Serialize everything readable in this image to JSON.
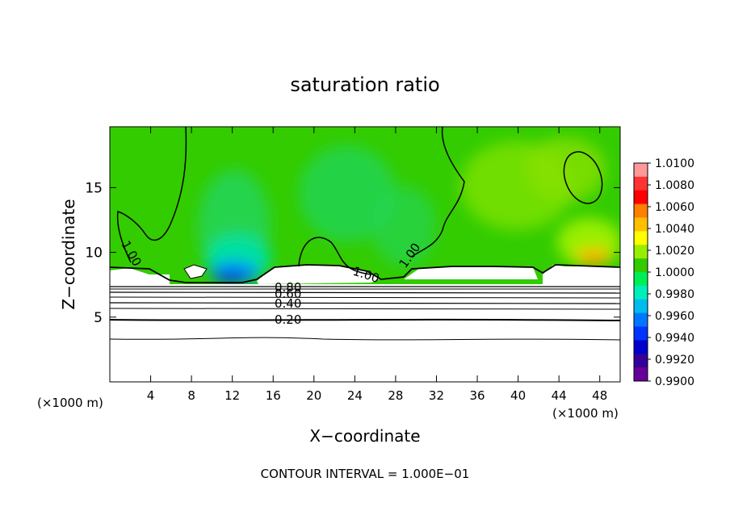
{
  "chart_data": {
    "type": "heatmap",
    "title": "saturation ratio",
    "xlabel": "X−coordinate",
    "ylabel": "Z−coordinate",
    "x_unit_left": "(×1000 m)",
    "x_unit_right": "(×1000 m)",
    "xlim": [
      0,
      50
    ],
    "ylim": [
      0,
      19.7
    ],
    "x_ticks": [
      4,
      8,
      12,
      16,
      20,
      24,
      28,
      32,
      36,
      40,
      44,
      48
    ],
    "y_ticks": [
      5,
      10,
      15
    ],
    "footer": "CONTOUR INTERVAL = 1.000E−01",
    "colorbar": {
      "min": 0.99,
      "max": 1.01,
      "labels": [
        "1.0100",
        "1.0080",
        "1.0060",
        "1.0040",
        "1.0020",
        "1.0000",
        "0.9980",
        "0.9960",
        "0.9940",
        "0.9920",
        "0.9900"
      ],
      "colors": [
        "#ff9999",
        "#ff3333",
        "#ff0000",
        "#ff7f00",
        "#ffbf00",
        "#ffff00",
        "#99ee00",
        "#33cc00",
        "#00ee55",
        "#00eebb",
        "#00bbee",
        "#0077ff",
        "#0033ff",
        "#0000cc",
        "#330099",
        "#660099"
      ]
    },
    "contour_labels": [
      {
        "text": "1.00",
        "x": 1.8,
        "y": 10.4
      },
      {
        "text": "1.00",
        "x": 25.2,
        "y": 8.5
      },
      {
        "text": "1.00",
        "x": 29.8,
        "y": 9.4
      },
      {
        "text": "0.80",
        "x": 17.5,
        "y": 7.6
      },
      {
        "text": "0.60",
        "x": 17.5,
        "y": 6.9
      },
      {
        "text": "0.40",
        "x": 17.5,
        "y": 6.1
      },
      {
        "text": "0.20",
        "x": 17.5,
        "y": 4.9
      }
    ],
    "subsaturated_levels": [
      0.2,
      0.4,
      0.6,
      0.8,
      1.0
    ],
    "cloud_top_z": 8.0,
    "field_notes": "Above cloud-top the saturation ratio is close to 1.0000 (green); minima near 0.9930 around x=11-13; maxima near 1.0050 around x=46-48 at z~9.5; below ~8 km the air is subsaturated (white) with contours 0.20-0.80."
  }
}
